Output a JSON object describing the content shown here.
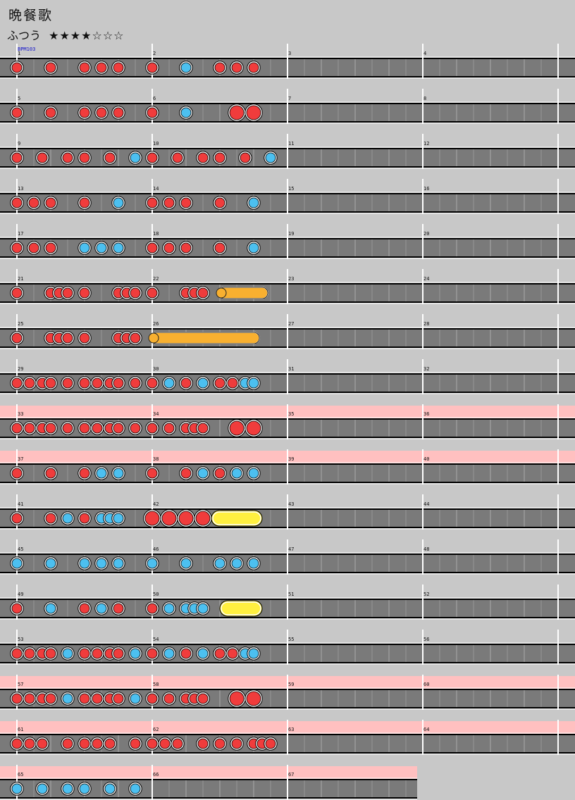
{
  "song": {
    "title": "晩餐歌",
    "difficulty_label": "ふつう",
    "difficulty_stars": "★★★★☆☆☆",
    "bpm_label": "BPM103"
  },
  "colors": {
    "background": "#c8c8c8",
    "lane": "#7a7a7a",
    "lane_border": "#000000",
    "gogo_band": "#ffc0c0",
    "don": "#f03c3c",
    "ka": "#4cc0f0",
    "drumroll": "#f8b030",
    "balloon_roll": "#fff040"
  },
  "legend_note_types": {
    "d": "don (small red)",
    "k": "ka (small blue)",
    "D": "big don",
    "r": "drumroll",
    "b": "balloon / big roll"
  },
  "chart_data": {
    "type": "game-note-chart",
    "game": "taiko",
    "bpm": 103,
    "measures_per_row": 4,
    "subdivisions_per_measure": 8,
    "total_measures": 67,
    "gogo_rows": [
      8,
      9,
      14,
      15,
      16
    ],
    "rows": [
      {
        "measures": [
          1,
          2,
          3,
          4
        ],
        "notes": [
          [
            "d",
            0
          ],
          [
            "d",
            2
          ],
          [
            "d",
            4
          ],
          [
            "d",
            5
          ],
          [
            "d",
            6
          ],
          [
            "d",
            8
          ],
          [
            "k",
            10
          ],
          [
            "d",
            12
          ],
          [
            "d",
            13
          ],
          [
            "d",
            14
          ]
        ]
      },
      {
        "measures": [
          5,
          6,
          7,
          8
        ],
        "notes": [
          [
            "d",
            0
          ],
          [
            "d",
            2
          ],
          [
            "d",
            4
          ],
          [
            "d",
            5
          ],
          [
            "d",
            6
          ],
          [
            "d",
            8
          ],
          [
            "k",
            10
          ],
          [
            "D",
            13
          ],
          [
            "D",
            14
          ]
        ]
      },
      {
        "measures": [
          9,
          10,
          11,
          12
        ],
        "notes": [
          [
            "d",
            0
          ],
          [
            "d",
            1.5
          ],
          [
            "d",
            3
          ],
          [
            "d",
            4
          ],
          [
            "d",
            5.5
          ],
          [
            "k",
            7
          ],
          [
            "d",
            8
          ],
          [
            "d",
            9.5
          ],
          [
            "d",
            11
          ],
          [
            "d",
            12
          ],
          [
            "d",
            13.5
          ],
          [
            "k",
            15
          ]
        ]
      },
      {
        "measures": [
          13,
          14,
          15,
          16
        ],
        "notes": [
          [
            "d",
            0
          ],
          [
            "d",
            1
          ],
          [
            "d",
            2
          ],
          [
            "d",
            4
          ],
          [
            "k",
            6
          ],
          [
            "d",
            8
          ],
          [
            "d",
            9
          ],
          [
            "d",
            10
          ],
          [
            "d",
            12
          ],
          [
            "k",
            14
          ]
        ]
      },
      {
        "measures": [
          17,
          18,
          19,
          20
        ],
        "notes": [
          [
            "d",
            0
          ],
          [
            "d",
            1
          ],
          [
            "d",
            2
          ],
          [
            "k",
            4
          ],
          [
            "k",
            5
          ],
          [
            "k",
            6
          ],
          [
            "d",
            8
          ],
          [
            "d",
            9
          ],
          [
            "d",
            10
          ],
          [
            "d",
            12
          ],
          [
            "k",
            14
          ]
        ]
      },
      {
        "measures": [
          21,
          22,
          23,
          24
        ],
        "notes": [
          [
            "d",
            0
          ],
          [
            "d",
            2
          ],
          [
            "d",
            2.5
          ],
          [
            "d",
            3
          ],
          [
            "d",
            4
          ],
          [
            "d",
            6
          ],
          [
            "d",
            6.5
          ],
          [
            "d",
            7
          ],
          [
            "d",
            8
          ],
          [
            "d",
            10
          ],
          [
            "d",
            10.5
          ],
          [
            "d",
            11
          ]
        ],
        "rolls": [
          [
            "r",
            12,
            14.5
          ]
        ]
      },
      {
        "measures": [
          25,
          26,
          27,
          28
        ],
        "notes": [
          [
            "d",
            0
          ],
          [
            "d",
            2
          ],
          [
            "d",
            2.5
          ],
          [
            "d",
            3
          ],
          [
            "d",
            4
          ],
          [
            "d",
            6
          ],
          [
            "d",
            6.5
          ],
          [
            "d",
            7
          ]
        ],
        "rolls": [
          [
            "r",
            8,
            14
          ]
        ]
      },
      {
        "measures": [
          29,
          30,
          31,
          32
        ],
        "notes": [
          [
            "d",
            0
          ],
          [
            "d",
            0.75
          ],
          [
            "d",
            1.5
          ],
          [
            "d",
            2
          ],
          [
            "d",
            3
          ],
          [
            "d",
            4
          ],
          [
            "d",
            4.75
          ],
          [
            "d",
            5.5
          ],
          [
            "d",
            6
          ],
          [
            "d",
            7
          ],
          [
            "d",
            8
          ],
          [
            "k",
            9
          ],
          [
            "d",
            10
          ],
          [
            "k",
            11
          ],
          [
            "d",
            12
          ],
          [
            "d",
            12.75
          ],
          [
            "k",
            13.5
          ],
          [
            "k",
            14
          ]
        ]
      },
      {
        "measures": [
          33,
          34,
          35,
          36
        ],
        "notes": [
          [
            "d",
            0
          ],
          [
            "d",
            0.75
          ],
          [
            "d",
            1.5
          ],
          [
            "d",
            2
          ],
          [
            "d",
            3
          ],
          [
            "d",
            4
          ],
          [
            "d",
            4.75
          ],
          [
            "d",
            5.5
          ],
          [
            "d",
            6
          ],
          [
            "d",
            7
          ],
          [
            "d",
            8
          ],
          [
            "d",
            9
          ],
          [
            "d",
            10
          ],
          [
            "d",
            10.5
          ],
          [
            "d",
            11
          ],
          [
            "D",
            13
          ],
          [
            "D",
            14
          ]
        ]
      },
      {
        "measures": [
          37,
          38,
          39,
          40
        ],
        "notes": [
          [
            "d",
            0
          ],
          [
            "d",
            2
          ],
          [
            "d",
            4
          ],
          [
            "k",
            5
          ],
          [
            "k",
            6
          ],
          [
            "d",
            8
          ],
          [
            "d",
            10
          ],
          [
            "k",
            11
          ],
          [
            "d",
            12
          ],
          [
            "k",
            13
          ],
          [
            "k",
            14
          ]
        ]
      },
      {
        "measures": [
          41,
          42,
          43,
          44
        ],
        "notes": [
          [
            "d",
            0
          ],
          [
            "d",
            2
          ],
          [
            "k",
            3
          ],
          [
            "d",
            4
          ],
          [
            "k",
            5
          ],
          [
            "k",
            5.5
          ],
          [
            "k",
            6
          ],
          [
            "D",
            8
          ],
          [
            "D",
            9
          ],
          [
            "D",
            10
          ],
          [
            "D",
            11
          ]
        ],
        "rolls": [
          [
            "b",
            12,
            14
          ]
        ]
      },
      {
        "measures": [
          45,
          46,
          47,
          48
        ],
        "notes": [
          [
            "k",
            0
          ],
          [
            "k",
            2
          ],
          [
            "k",
            4
          ],
          [
            "k",
            5
          ],
          [
            "k",
            6
          ],
          [
            "k",
            8
          ],
          [
            "k",
            10
          ],
          [
            "k",
            12
          ],
          [
            "k",
            13
          ],
          [
            "k",
            14
          ]
        ]
      },
      {
        "measures": [
          49,
          50,
          51,
          52
        ],
        "notes": [
          [
            "d",
            0
          ],
          [
            "k",
            2
          ],
          [
            "d",
            4
          ],
          [
            "k",
            5
          ],
          [
            "d",
            6
          ],
          [
            "d",
            8
          ],
          [
            "k",
            9
          ],
          [
            "k",
            10
          ],
          [
            "k",
            10.5
          ],
          [
            "k",
            11
          ]
        ],
        "rolls": [
          [
            "b",
            12.5,
            14
          ]
        ]
      },
      {
        "measures": [
          53,
          54,
          55,
          56
        ],
        "notes": [
          [
            "d",
            0
          ],
          [
            "d",
            0.75
          ],
          [
            "d",
            1.5
          ],
          [
            "d",
            2
          ],
          [
            "k",
            3
          ],
          [
            "d",
            4
          ],
          [
            "d",
            4.75
          ],
          [
            "d",
            5.5
          ],
          [
            "d",
            6
          ],
          [
            "k",
            7
          ],
          [
            "d",
            8
          ],
          [
            "k",
            9
          ],
          [
            "d",
            10
          ],
          [
            "k",
            11
          ],
          [
            "d",
            12
          ],
          [
            "d",
            12.75
          ],
          [
            "k",
            13.5
          ],
          [
            "k",
            14
          ]
        ]
      },
      {
        "measures": [
          57,
          58,
          59,
          60
        ],
        "notes": [
          [
            "d",
            0
          ],
          [
            "d",
            0.75
          ],
          [
            "d",
            1.5
          ],
          [
            "d",
            2
          ],
          [
            "k",
            3
          ],
          [
            "d",
            4
          ],
          [
            "d",
            4.75
          ],
          [
            "d",
            5.5
          ],
          [
            "d",
            6
          ],
          [
            "k",
            7
          ],
          [
            "d",
            8
          ],
          [
            "d",
            9
          ],
          [
            "d",
            10
          ],
          [
            "d",
            10.5
          ],
          [
            "d",
            11
          ],
          [
            "D",
            13
          ],
          [
            "D",
            14
          ]
        ]
      },
      {
        "measures": [
          61,
          62,
          63,
          64
        ],
        "notes": [
          [
            "d",
            0
          ],
          [
            "d",
            0.75
          ],
          [
            "d",
            1.5
          ],
          [
            "d",
            3
          ],
          [
            "d",
            4
          ],
          [
            "d",
            4.75
          ],
          [
            "d",
            5.5
          ],
          [
            "d",
            7
          ],
          [
            "d",
            8
          ],
          [
            "d",
            8.75
          ],
          [
            "d",
            9.5
          ],
          [
            "d",
            11
          ],
          [
            "d",
            12
          ],
          [
            "d",
            13
          ],
          [
            "d",
            14
          ],
          [
            "d",
            14.5
          ],
          [
            "d",
            15
          ]
        ]
      },
      {
        "measures": [
          65,
          66,
          67
        ],
        "notes": [
          [
            "k",
            0
          ],
          [
            "k",
            1.5
          ],
          [
            "k",
            3
          ],
          [
            "k",
            4
          ],
          [
            "k",
            5.5
          ],
          [
            "k",
            7
          ]
        ]
      }
    ]
  }
}
